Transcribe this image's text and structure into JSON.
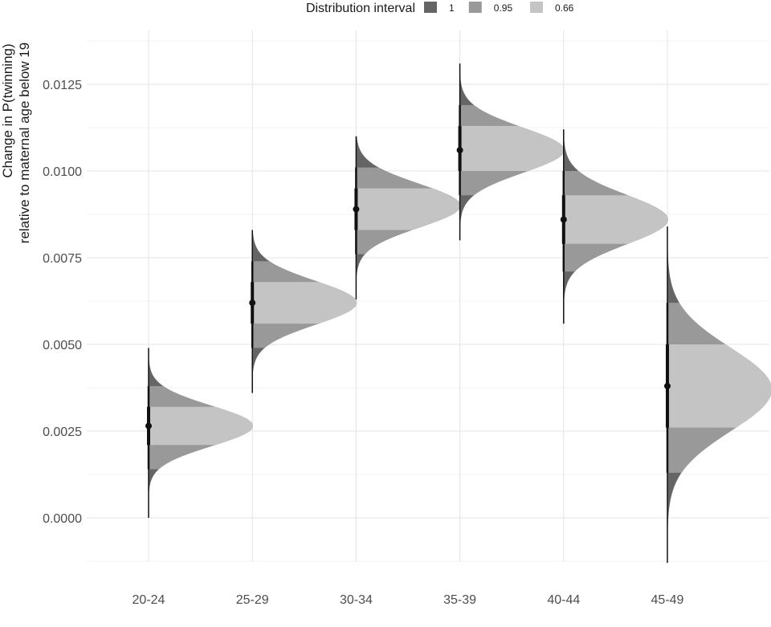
{
  "chart_data": {
    "type": "halfeye",
    "ylabel_line1": "Change in P(twinning)",
    "ylabel_line2": "relative to maternal age below 19",
    "categories": [
      "20-24",
      "25-29",
      "30-34",
      "35-39",
      "40-44",
      "45-49"
    ],
    "yticks": [
      "0.0000",
      "0.0025",
      "0.0050",
      "0.0075",
      "0.0100",
      "0.0125"
    ],
    "ylim": [
      -0.0013,
      0.0138
    ],
    "legend": {
      "title": "Distribution interval",
      "position": "top",
      "entries": [
        {
          "label": "1",
          "color": "#656565"
        },
        {
          "label": "0.95",
          "color": "#999999"
        },
        {
          "label": "0.66",
          "color": "#c4c4c4"
        }
      ]
    },
    "series": [
      {
        "category": "20-24",
        "median": 0.00265,
        "mode": 0.00265,
        "min": 0.0,
        "max": 0.0049,
        "q95": [
          0.0014,
          0.0038
        ],
        "q66": [
          0.0021,
          0.0032
        ],
        "sd": 0.00058
      },
      {
        "category": "25-29",
        "median": 0.0062,
        "mode": 0.0062,
        "min": 0.0036,
        "max": 0.0083,
        "q95": [
          0.0049,
          0.0074
        ],
        "q66": [
          0.0056,
          0.0068
        ],
        "sd": 0.00063
      },
      {
        "category": "30-34",
        "median": 0.0089,
        "mode": 0.009,
        "min": 0.0063,
        "max": 0.011,
        "q95": [
          0.0076,
          0.0101
        ],
        "q66": [
          0.0083,
          0.0095
        ],
        "sd": 0.00063
      },
      {
        "category": "35-39",
        "median": 0.0106,
        "mode": 0.0106,
        "min": 0.008,
        "max": 0.0131,
        "q95": [
          0.0093,
          0.0119
        ],
        "q66": [
          0.01,
          0.0113
        ],
        "sd": 0.00065
      },
      {
        "category": "40-44",
        "median": 0.0086,
        "mode": 0.0086,
        "min": 0.0056,
        "max": 0.0112,
        "q95": [
          0.0071,
          0.01
        ],
        "q66": [
          0.0079,
          0.0093
        ],
        "sd": 0.00071
      },
      {
        "category": "45-49",
        "median": 0.0038,
        "mode": 0.0037,
        "min": -0.0013,
        "max": 0.0084,
        "q95": [
          0.0013,
          0.0062
        ],
        "q66": [
          0.0026,
          0.005
        ],
        "sd": 0.0012
      }
    ],
    "grid": true
  }
}
